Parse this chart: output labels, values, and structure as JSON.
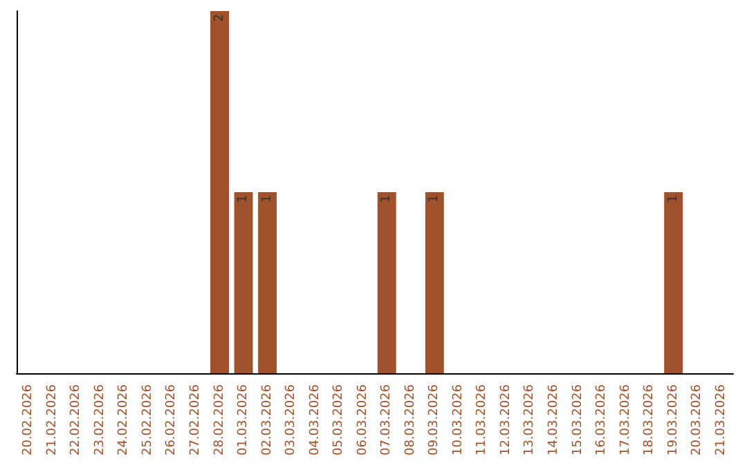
{
  "chart_data": {
    "type": "bar",
    "categories": [
      "20.02.2026",
      "21.02.2026",
      "22.02.2026",
      "23.02.2026",
      "24.02.2026",
      "25.02.2026",
      "26.02.2026",
      "27.02.2026",
      "28.02.2026",
      "01.03.2026",
      "02.03.2026",
      "03.03.2026",
      "04.03.2026",
      "05.03.2026",
      "06.03.2026",
      "07.03.2026",
      "08.03.2026",
      "09.03.2026",
      "10.03.2026",
      "11.03.2026",
      "12.03.2026",
      "13.03.2026",
      "14.03.2026",
      "15.03.2026",
      "16.03.2026",
      "17.03.2026",
      "18.03.2026",
      "19.03.2026",
      "20.03.2026",
      "21.03.2026"
    ],
    "values": [
      0,
      0,
      0,
      0,
      0,
      0,
      0,
      0,
      2,
      1,
      1,
      0,
      0,
      0,
      0,
      1,
      0,
      1,
      0,
      0,
      0,
      0,
      0,
      0,
      0,
      0,
      0,
      1,
      0,
      0
    ],
    "value_labels": [
      null,
      null,
      null,
      null,
      null,
      null,
      null,
      null,
      "2",
      "1",
      "1",
      null,
      null,
      null,
      null,
      "1",
      null,
      "1",
      null,
      null,
      null,
      null,
      null,
      null,
      null,
      null,
      null,
      "1",
      null,
      null
    ],
    "color": "#a0522d",
    "grid": false
  }
}
